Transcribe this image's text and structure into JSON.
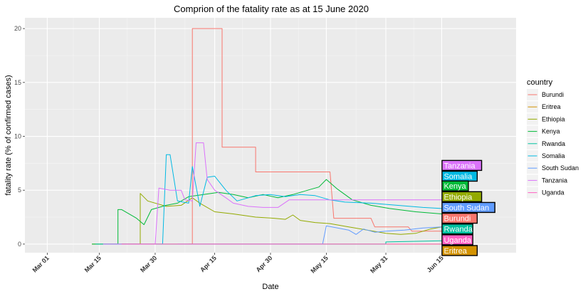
{
  "chart_data": {
    "type": "line",
    "title": "Comprion of the fatality rate as at 15 June 2020",
    "xlabel": "Date",
    "ylabel": "fatality rate (% of confirmed cases)",
    "xlim": [
      "2020-02-24",
      "2020-07-05"
    ],
    "ylim": [
      -0.8,
      21
    ],
    "x_ticks": [
      {
        "date": "2020-03-01",
        "label": "Mar 01"
      },
      {
        "date": "2020-03-15",
        "label": "Mar 15"
      },
      {
        "date": "2020-03-30",
        "label": "Mar 30"
      },
      {
        "date": "2020-04-15",
        "label": "Apr 15"
      },
      {
        "date": "2020-04-30",
        "label": "Apr 30"
      },
      {
        "date": "2020-05-15",
        "label": "May 15"
      },
      {
        "date": "2020-05-31",
        "label": "May 31"
      },
      {
        "date": "2020-06-15",
        "label": "Jun 15"
      }
    ],
    "y_ticks": [
      0,
      5,
      10,
      15,
      20
    ],
    "grid": true,
    "legend": {
      "title": "country",
      "position": "right"
    },
    "series": [
      {
        "name": "Burundi",
        "color": "#F8766D",
        "points": [
          [
            "2020-04-08",
            0
          ],
          [
            "2020-04-08",
            0
          ],
          [
            "2020-04-09",
            0
          ],
          [
            "2020-04-09",
            20
          ],
          [
            "2020-04-16",
            20
          ],
          [
            "2020-04-17",
            20
          ],
          [
            "2020-04-17",
            9
          ],
          [
            "2020-04-21",
            9
          ],
          [
            "2020-04-26",
            9
          ],
          [
            "2020-04-26",
            6.7
          ],
          [
            "2020-05-05",
            6.7
          ],
          [
            "2020-05-15",
            6.7
          ],
          [
            "2020-05-16",
            6.7
          ],
          [
            "2020-05-17",
            2.4
          ],
          [
            "2020-05-27",
            2.4
          ],
          [
            "2020-05-28",
            1.6
          ],
          [
            "2020-06-06",
            1.6
          ],
          [
            "2020-06-07",
            1.2
          ],
          [
            "2020-06-15",
            1.2
          ]
        ]
      },
      {
        "name": "Eritrea",
        "color": "#D39200",
        "points": [
          [
            "2020-03-21",
            0
          ],
          [
            "2020-06-15",
            0
          ]
        ]
      },
      {
        "name": "Ethiopia",
        "color": "#93AA00",
        "points": [
          [
            "2020-03-13",
            0
          ],
          [
            "2020-03-26",
            0
          ],
          [
            "2020-03-26",
            4.7
          ],
          [
            "2020-03-28",
            4.0
          ],
          [
            "2020-04-02",
            3.5
          ],
          [
            "2020-04-06",
            3.6
          ],
          [
            "2020-04-09",
            4.3
          ],
          [
            "2020-04-11",
            3.8
          ],
          [
            "2020-04-15",
            3.0
          ],
          [
            "2020-04-20",
            2.8
          ],
          [
            "2020-04-26",
            2.5
          ],
          [
            "2020-05-01",
            2.4
          ],
          [
            "2020-05-04",
            2.3
          ],
          [
            "2020-05-06",
            2.7
          ],
          [
            "2020-05-08",
            2.2
          ],
          [
            "2020-05-12",
            2.0
          ],
          [
            "2020-05-16",
            1.9
          ],
          [
            "2020-05-21",
            1.6
          ],
          [
            "2020-05-26",
            1.3
          ],
          [
            "2020-05-31",
            1.0
          ],
          [
            "2020-06-04",
            0.9
          ],
          [
            "2020-06-08",
            1.0
          ],
          [
            "2020-06-12",
            1.4
          ],
          [
            "2020-06-15",
            1.6
          ]
        ]
      },
      {
        "name": "Kenya",
        "color": "#00BA38",
        "points": [
          [
            "2020-03-13",
            0
          ],
          [
            "2020-03-20",
            0
          ],
          [
            "2020-03-20",
            3.2
          ],
          [
            "2020-03-21",
            3.2
          ],
          [
            "2020-03-25",
            2.4
          ],
          [
            "2020-03-27",
            1.8
          ],
          [
            "2020-03-29",
            3.2
          ],
          [
            "2020-04-02",
            3.6
          ],
          [
            "2020-04-05",
            3.8
          ],
          [
            "2020-04-08",
            4.4
          ],
          [
            "2020-04-12",
            4.6
          ],
          [
            "2020-04-16",
            4.8
          ],
          [
            "2020-04-20",
            4.6
          ],
          [
            "2020-04-24",
            4.3
          ],
          [
            "2020-04-28",
            4.6
          ],
          [
            "2020-05-02",
            4.3
          ],
          [
            "2020-05-06",
            4.6
          ],
          [
            "2020-05-10",
            5.0
          ],
          [
            "2020-05-13",
            5.3
          ],
          [
            "2020-05-15",
            6.0
          ],
          [
            "2020-05-18",
            5.1
          ],
          [
            "2020-05-22",
            4.1
          ],
          [
            "2020-05-27",
            3.6
          ],
          [
            "2020-06-01",
            3.3
          ],
          [
            "2020-06-08",
            3.0
          ],
          [
            "2020-06-15",
            2.8
          ]
        ]
      },
      {
        "name": "Rwanda",
        "color": "#00C19F",
        "points": [
          [
            "2020-03-14",
            0
          ],
          [
            "2020-05-31",
            0
          ],
          [
            "2020-05-31",
            0.2
          ],
          [
            "2020-06-15",
            0.3
          ]
        ]
      },
      {
        "name": "Somalia",
        "color": "#00B9E3",
        "points": [
          [
            "2020-03-16",
            0
          ],
          [
            "2020-04-01",
            0
          ],
          [
            "2020-04-02",
            8.3
          ],
          [
            "2020-04-03",
            8.3
          ],
          [
            "2020-04-05",
            4.0
          ],
          [
            "2020-04-08",
            3.8
          ],
          [
            "2020-04-09",
            7.2
          ],
          [
            "2020-04-11",
            3.5
          ],
          [
            "2020-04-13",
            6.2
          ],
          [
            "2020-04-15",
            6.3
          ],
          [
            "2020-04-18",
            5.0
          ],
          [
            "2020-04-21",
            4.0
          ],
          [
            "2020-04-23",
            4.2
          ],
          [
            "2020-04-26",
            4.5
          ],
          [
            "2020-04-30",
            4.6
          ],
          [
            "2020-05-04",
            4.4
          ],
          [
            "2020-05-08",
            4.6
          ],
          [
            "2020-05-12",
            4.5
          ],
          [
            "2020-05-16",
            4.1
          ],
          [
            "2020-05-20",
            3.9
          ],
          [
            "2020-05-27",
            3.8
          ],
          [
            "2020-06-03",
            3.6
          ],
          [
            "2020-06-10",
            3.4
          ],
          [
            "2020-06-15",
            3.3
          ]
        ]
      },
      {
        "name": "South Sudan",
        "color": "#619CFF",
        "points": [
          [
            "2020-04-05",
            0
          ],
          [
            "2020-05-14",
            0
          ],
          [
            "2020-05-15",
            1.7
          ],
          [
            "2020-05-18",
            1.5
          ],
          [
            "2020-05-21",
            1.3
          ],
          [
            "2020-05-23",
            0.9
          ],
          [
            "2020-05-25",
            1.4
          ],
          [
            "2020-05-28",
            1.1
          ],
          [
            "2020-05-31",
            1.2
          ],
          [
            "2020-06-05",
            1.3
          ],
          [
            "2020-06-10",
            1.5
          ],
          [
            "2020-06-15",
            1.6
          ]
        ]
      },
      {
        "name": "Tanzania",
        "color": "#DB72FB",
        "points": [
          [
            "2020-03-16",
            0
          ],
          [
            "2020-03-30",
            0
          ],
          [
            "2020-03-31",
            5.2
          ],
          [
            "2020-04-03",
            5.0
          ],
          [
            "2020-04-06",
            5.0
          ],
          [
            "2020-04-07",
            4.1
          ],
          [
            "2020-04-09",
            4.0
          ],
          [
            "2020-04-10",
            9.4
          ],
          [
            "2020-04-12",
            9.4
          ],
          [
            "2020-04-13",
            6.0
          ],
          [
            "2020-04-15",
            5.0
          ],
          [
            "2020-04-18",
            4.3
          ],
          [
            "2020-04-20",
            3.8
          ],
          [
            "2020-04-24",
            3.5
          ],
          [
            "2020-04-28",
            3.4
          ],
          [
            "2020-05-02",
            3.4
          ],
          [
            "2020-05-05",
            4.1
          ],
          [
            "2020-05-15",
            4.1
          ],
          [
            "2020-06-15",
            4.1
          ]
        ]
      },
      {
        "name": "Uganda",
        "color": "#FF61C3",
        "points": [
          [
            "2020-03-21",
            0
          ],
          [
            "2020-06-15",
            0
          ]
        ]
      }
    ],
    "end_labels": [
      {
        "name": "Tanzania",
        "value": 7.3,
        "color": "#DB72FB"
      },
      {
        "name": "Somalia",
        "value": 6.3,
        "color": "#00B9E3"
      },
      {
        "name": "Kenya",
        "value": 5.4,
        "color": "#00BA38"
      },
      {
        "name": "Ethiopia",
        "value": 4.4,
        "color": "#93AA00"
      },
      {
        "name": "South Sudan",
        "value": 3.4,
        "color": "#619CFF"
      },
      {
        "name": "Burundi",
        "value": 2.4,
        "color": "#F8766D"
      },
      {
        "name": "Rwanda",
        "value": 1.4,
        "color": "#00C19F"
      },
      {
        "name": "Uganda",
        "value": 0.4,
        "color": "#FF61C3"
      },
      {
        "name": "Eritrea",
        "value": -0.6,
        "color": "#D39200"
      }
    ]
  }
}
